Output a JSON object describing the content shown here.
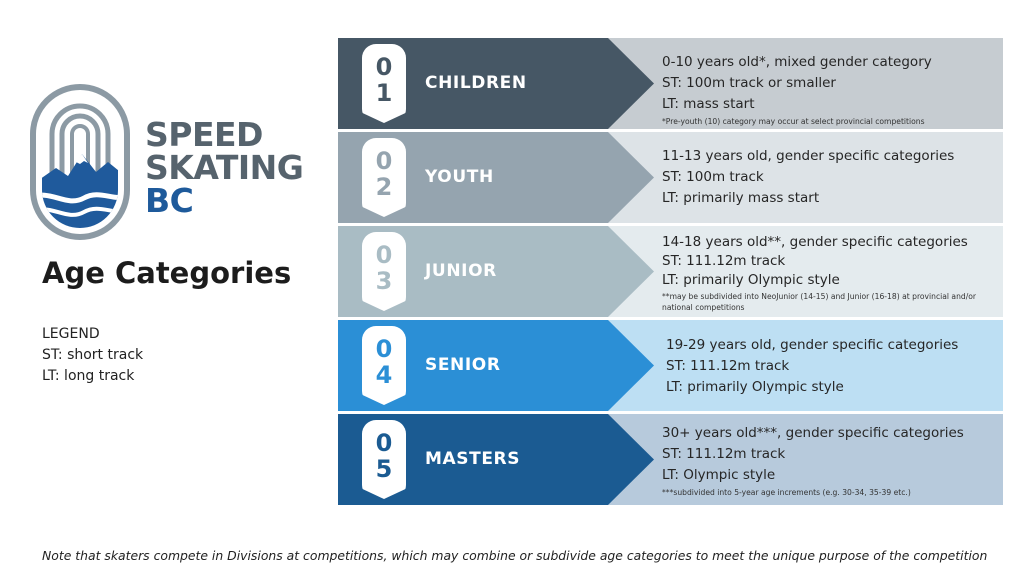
{
  "brand": {
    "line1": "SPEED",
    "line2": "SKATING",
    "line3": "BC"
  },
  "title": "Age Categories",
  "legend": {
    "heading": "LEGEND",
    "items": [
      "ST: short track",
      "LT: long track"
    ]
  },
  "categories": [
    {
      "num1": "0",
      "num2": "1",
      "name": "CHILDREN",
      "lines": [
        "0-10 years old*, mixed gender category",
        "ST: 100m track or smaller",
        "LT: mass start"
      ],
      "note": "*Pre-youth (10) category may occur at select provincial competitions",
      "band_color": "#465765",
      "desc_color": "#c6ccd1",
      "num_color": "#465765"
    },
    {
      "num1": "0",
      "num2": "2",
      "name": "YOUTH",
      "lines": [
        "11-13 years old, gender specific categories",
        "ST: 100m track",
        "LT: primarily mass start"
      ],
      "note": "",
      "band_color": "#95a4af",
      "desc_color": "#dde3e7",
      "num_color": "#95a4af"
    },
    {
      "num1": "0",
      "num2": "3",
      "name": "JUNIOR",
      "lines": [
        "14-18 years old**, gender specific categories",
        "ST: 111.12m track",
        "LT: primarily Olympic style"
      ],
      "note": "**may be subdivided into NeoJunior (14-15) and Junior (16-18) at provincial and/or national competitions",
      "band_color": "#a9bcc4",
      "desc_color": "#e4ebee",
      "num_color": "#a9bcc4"
    },
    {
      "num1": "0",
      "num2": "4",
      "name": "SENIOR",
      "lines": [
        "19-29 years old, gender specific categories",
        "ST: 111.12m track",
        "LT: primarily Olympic style"
      ],
      "note": "",
      "band_color": "#2b8fd6",
      "desc_color": "#bddff3",
      "num_color": "#2b8fd6"
    },
    {
      "num1": "0",
      "num2": "5",
      "name": "MASTERS",
      "lines": [
        "30+ years old***, gender specific categories",
        "ST: 111.12m track",
        "LT: Olympic style"
      ],
      "note": "***subdivided into 5-year age increments (e.g. 30-34, 35-39 etc.)",
      "band_color": "#1b5b92",
      "desc_color": "#b7cadc",
      "num_color": "#1b5b92"
    }
  ],
  "footnote": "Note that skaters compete in Divisions at competitions, which may combine or subdivide age categories to meet the unique purpose of the competition"
}
